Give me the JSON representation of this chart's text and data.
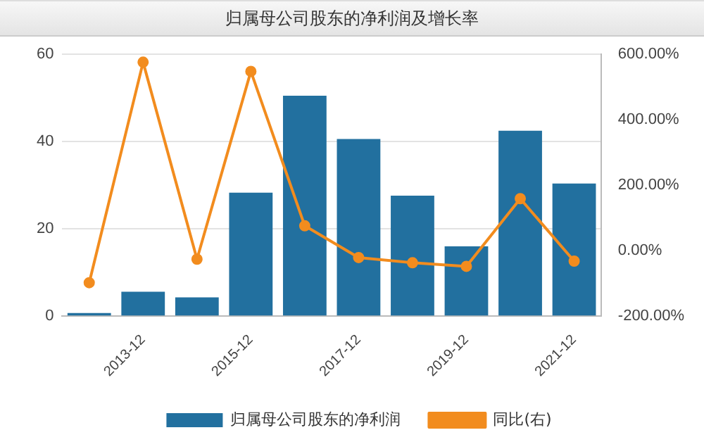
{
  "chart_data": {
    "type": "bar",
    "title": "归属母公司股东的净利润及增长率",
    "categories": [
      null,
      "2013-12",
      null,
      "2015-12",
      null,
      "2017-12",
      null,
      "2019-12",
      null,
      "2021-12"
    ],
    "series": [
      {
        "name": "归属母公司股东的净利润",
        "color": "#22709f",
        "values": [
          0.7,
          5.6,
          4.3,
          28.3,
          50.5,
          40.6,
          27.6,
          16,
          42.5,
          30.4
        ]
      },
      {
        "name": "同比(右)",
        "type": "line",
        "axis": "y2",
        "color": "#f28c1e",
        "marker": "circle",
        "values": [
          -98,
          576,
          -26,
          548,
          76,
          -21,
          -37,
          -48,
          159,
          -32
        ]
      }
    ],
    "ylim": [
      0,
      60
    ],
    "yticks": [
      0,
      20,
      40,
      60
    ],
    "y2lim": [
      -200,
      600
    ],
    "y2ticks": [
      {
        "value": -200,
        "label": "-200.00%"
      },
      {
        "value": 0,
        "label": "0.00%"
      },
      {
        "value": 200,
        "label": "200.00%"
      },
      {
        "value": 400,
        "label": "400.00%"
      },
      {
        "value": 600,
        "label": "600.00%"
      }
    ],
    "grid": "y",
    "legend": "bottom"
  }
}
